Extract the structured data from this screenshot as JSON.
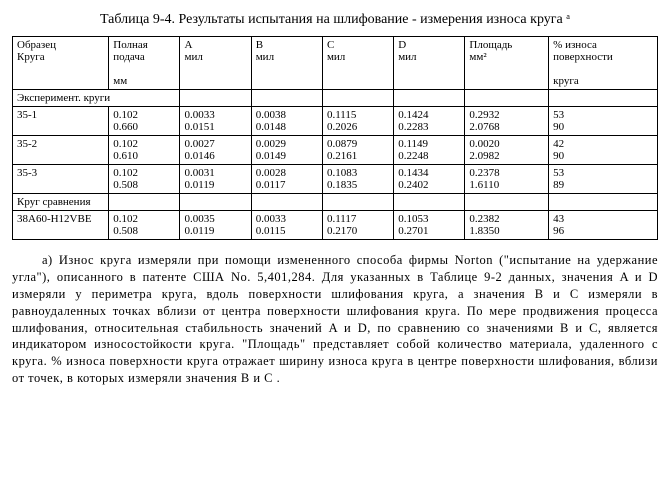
{
  "title": "Таблица 9-4.  Результаты испытания на шлифование - измерения износа круга ᵃ",
  "headers": {
    "c0a": "Образец",
    "c0b": "Круга",
    "c1a": "Полная",
    "c1b": "подача",
    "c1c": "мм",
    "c2a": "A",
    "c2b": "мил",
    "c3a": "B",
    "c3b": "мил",
    "c4a": "C",
    "c4b": "мил",
    "c5a": "D",
    "c5b": "мил",
    "c6a": "Площадь",
    "c6b": "мм²",
    "c7a": "% износа",
    "c7b": "поверхности",
    "c7c": "круга"
  },
  "section1": "Эксперимент. круги",
  "section2": "Круг сравнения",
  "rows": [
    {
      "id": "35-1",
      "p1": "0.102",
      "p2": "0.660",
      "a1": "0.0033",
      "a2": "0.0151",
      "b1": "0.0038",
      "b2": "0.0148",
      "c1": "0.1115",
      "c2": "0.2026",
      "d1": "0.1424",
      "d2": "0.2283",
      "s1": "0.2932",
      "s2": "2.0768",
      "w1": "53",
      "w2": "90"
    },
    {
      "id": "35-2",
      "p1": "0.102",
      "p2": "0.610",
      "a1": "0.0027",
      "a2": "0.0146",
      "b1": "0.0029",
      "b2": "0.0149",
      "c1": "0.0879",
      "c2": "0.2161",
      "d1": "0.1149",
      "d2": "0.2248",
      "s1": "0.0020",
      "s2": "2.0982",
      "w1": "42",
      "w2": "90"
    },
    {
      "id": "35-3",
      "p1": "0.102",
      "p2": "0.508",
      "a1": "0.0031",
      "a2": "0.0119",
      "b1": "0.0028",
      "b2": "0.0117",
      "c1": "0.1083",
      "c2": "0.1835",
      "d1": "0.1434",
      "d2": "0.2402",
      "s1": "0.2378",
      "s2": "1.6110",
      "w1": "53",
      "w2": "89"
    }
  ],
  "compare": {
    "id": "38A60-H12VBE",
    "p1": "0.102",
    "p2": "0.508",
    "a1": "0.0035",
    "a2": "0.0119",
    "b1": "0.0033",
    "b2": "0.0115",
    "c1": "0.1117",
    "c2": "0.2170",
    "d1": "0.1053",
    "d2": "0.2701",
    "s1": "0.2382",
    "s2": "1.8350",
    "w1": "43",
    "w2": "96"
  },
  "footnote": "a) Износ круга измеряли при помощи измененного способа фирмы   Norton (\"испытание на удержание угла\"), описанного в патенте США No. 5,401,284. Для указанных в Таблице 9-2 данных, значения A и D измеряли у периметра круга, вдоль поверхности шлифования круга, а значения  B и C измеряли в равноудаленных точках вблизи от центра поверхности шлифования круга. По мере продвижения процесса шлифования, относительная стабильность значений A и D, по сравнению со значениями   B и C, является индикатором износостойкости круга. \"Площадь\" представляет собой количество материала, удаленного с круга.  % износа поверхности круга отражает ширину износа круга в центре поверхности шлифования, вблизи от точек, в которых измеряли значения  B и C ."
}
